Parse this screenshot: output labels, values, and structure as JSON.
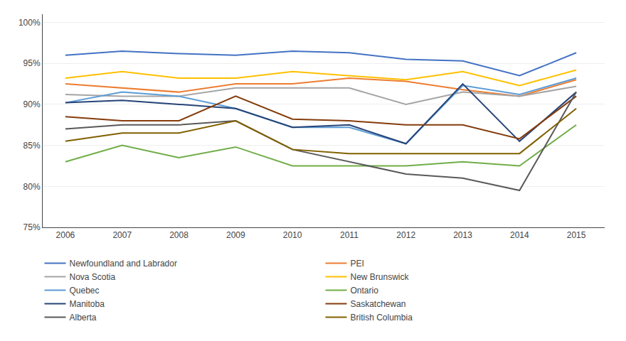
{
  "chart_data": {
    "type": "line",
    "x": [
      2006,
      2007,
      2008,
      2009,
      2010,
      2011,
      2012,
      2013,
      2014,
      2015
    ],
    "xlim": [
      2005.6,
      2015.5
    ],
    "xticks": [
      2006,
      2007,
      2008,
      2009,
      2010,
      2011,
      2012,
      2013,
      2014,
      2015
    ],
    "ylim": [
      75,
      101
    ],
    "yticks": [
      {
        "value": 75,
        "label": "75%"
      },
      {
        "value": 80,
        "label": "80%"
      },
      {
        "value": 85,
        "label": "85%"
      },
      {
        "value": 90,
        "label": "90%"
      },
      {
        "value": 95,
        "label": "95%"
      },
      {
        "value": 100,
        "label": "100%"
      }
    ],
    "grid": "y",
    "legend": "bottom",
    "series": [
      {
        "name": "Newfoundland and Labrador",
        "color": "#4472C4",
        "values": [
          96.0,
          96.5,
          96.2,
          96.0,
          96.5,
          96.3,
          95.5,
          95.3,
          93.5,
          96.3
        ]
      },
      {
        "name": "PEI",
        "color": "#ED7D31",
        "values": [
          92.5,
          92.0,
          91.5,
          92.5,
          92.5,
          93.2,
          92.8,
          91.8,
          91.0,
          93.0
        ]
      },
      {
        "name": "Nova Scotia",
        "color": "#A5A5A5",
        "values": [
          91.2,
          91.0,
          91.0,
          92.0,
          92.0,
          92.0,
          90.0,
          91.5,
          91.0,
          92.2
        ]
      },
      {
        "name": "New Brunswick",
        "color": "#FFC000",
        "values": [
          93.2,
          94.0,
          93.2,
          93.2,
          94.0,
          93.5,
          93.0,
          94.0,
          92.3,
          94.2
        ]
      },
      {
        "name": "Quebec",
        "color": "#5B9BD5",
        "values": [
          90.2,
          91.5,
          91.0,
          89.5,
          87.2,
          87.2,
          85.2,
          92.3,
          91.2,
          93.2
        ]
      },
      {
        "name": "Ontario",
        "color": "#70AD47",
        "values": [
          83.0,
          85.0,
          83.5,
          84.8,
          82.5,
          82.5,
          82.5,
          83.0,
          82.5,
          87.5
        ]
      },
      {
        "name": "Manitoba",
        "color": "#264478",
        "values": [
          90.2,
          90.5,
          90.0,
          89.5,
          87.2,
          87.5,
          85.2,
          92.5,
          85.5,
          91.5
        ]
      },
      {
        "name": "Saskatchewan",
        "color": "#843C0C",
        "values": [
          88.5,
          88.0,
          88.0,
          91.0,
          88.2,
          88.0,
          87.5,
          87.5,
          85.8,
          91.0
        ]
      },
      {
        "name": "Alberta",
        "color": "#595959",
        "values": [
          87.0,
          87.5,
          87.5,
          88.0,
          84.5,
          83.0,
          81.5,
          81.0,
          79.5,
          91.5
        ]
      },
      {
        "name": "British Columbia",
        "color": "#806000",
        "values": [
          85.5,
          86.5,
          86.5,
          88.0,
          84.5,
          84.0,
          84.0,
          84.0,
          84.0,
          89.5
        ]
      }
    ]
  }
}
